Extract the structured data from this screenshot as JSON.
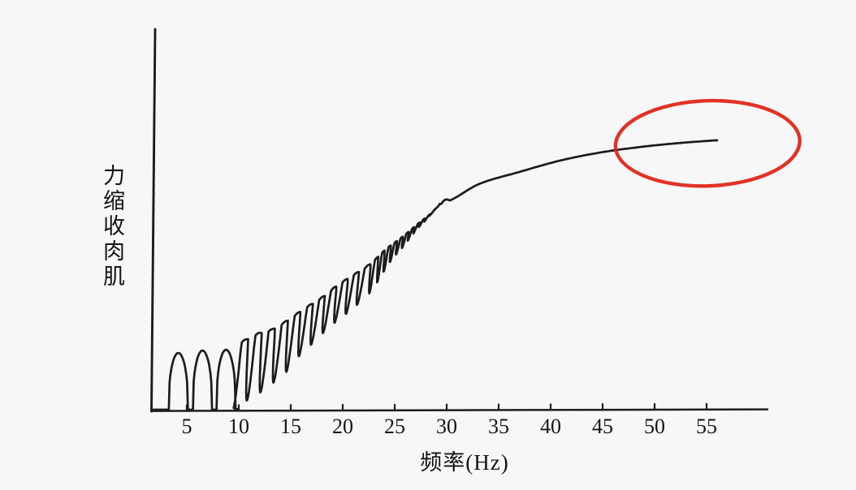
{
  "figure": {
    "background": "#f7f7f9",
    "ink_color": "#1c1c1e",
    "annotation_color": "#df2113"
  },
  "chart_data": {
    "type": "line",
    "title": "",
    "xlabel": "频率(Hz)",
    "ylabel": "肌肉收缩力",
    "x_ticks": [
      5,
      10,
      15,
      20,
      25,
      30,
      35,
      40,
      45,
      50,
      55
    ],
    "x_axis_range_hz": [
      1.8,
      60.8
    ],
    "y_axis_note": "unlabeled axis, relative muscle contraction force (0-100%)",
    "grid": false,
    "legend": false,
    "series_description": "Muscle contraction force vs stimulation frequency: single twitches at low frequency, unfused tetanus with decreasing ripple, smooth fused tetanus plateau above ~30 Hz",
    "single_twitches": [
      {
        "hz": 4.32,
        "peak_pct": 21.3,
        "halfwidth_hz": 1.05
      },
      {
        "hz": 6.64,
        "peak_pct": 22.2,
        "halfwidth_hz": 1.05
      },
      {
        "hz": 8.91,
        "peak_pct": 22.5,
        "halfwidth_hz": 1.05
      }
    ],
    "unfused_tetanus": {
      "start_hz": 9.92,
      "end_hz": 29.69,
      "envelope_hz_pct": [
        [
          8.91,
          22.5
        ],
        [
          10.63,
          25.8
        ],
        [
          11.88,
          28.2
        ],
        [
          13.2,
          29.7
        ],
        [
          14.77,
          33.3
        ],
        [
          16.33,
          37.5
        ],
        [
          18.05,
          41.7
        ],
        [
          19.45,
          46.0
        ],
        [
          21.02,
          49.9
        ],
        [
          22.58,
          53.8
        ],
        [
          24.14,
          59.5
        ],
        [
          25.7,
          64.0
        ],
        [
          27.27,
          69.1
        ],
        [
          28.44,
          72.7
        ],
        [
          29.45,
          76.6
        ]
      ],
      "ripple_depth_hz_pct": [
        [
          9.92,
          24.0
        ],
        [
          11.25,
          23.4
        ],
        [
          12.58,
          22.2
        ],
        [
          13.75,
          20.7
        ],
        [
          15.0,
          19.8
        ],
        [
          16.09,
          17.4
        ],
        [
          17.11,
          16.2
        ],
        [
          18.28,
          14.7
        ],
        [
          19.3,
          14.4
        ],
        [
          20.39,
          13.8
        ],
        [
          21.41,
          13.2
        ],
        [
          22.58,
          12.0
        ],
        [
          23.75,
          9.9
        ],
        [
          25.08,
          5.7
        ],
        [
          26.09,
          4.5
        ],
        [
          27.27,
          2.4
        ],
        [
          28.44,
          1.2
        ],
        [
          29.22,
          0.45
        ],
        [
          29.69,
          0
        ]
      ],
      "ripple_period_hz": [
        [
          9.92,
          1.33
        ],
        [
          22.58,
          1.02
        ],
        [
          22.97,
          0.63
        ],
        [
          29.69,
          0.45
        ]
      ]
    },
    "fused_tetanus_hz_pct": [
      [
        29.45,
        76.6
      ],
      [
        29.92,
        78.2
      ],
      [
        30.35,
        77.8
      ],
      [
        33.1,
        83.8
      ],
      [
        36.99,
        88.3
      ],
      [
        40.9,
        92.5
      ],
      [
        44.77,
        95.5
      ],
      [
        48.75,
        97.6
      ],
      [
        52.66,
        99.1
      ],
      [
        55.86,
        100
      ]
    ],
    "annotation": {
      "shape": "ellipse",
      "meaning": "highlights fused-tetanus force plateau",
      "center_hz": 55.1,
      "center_pct": 98.9,
      "rx_hz": 8.87,
      "ry_pct": 15.77,
      "tilt_deg": -2
    }
  }
}
